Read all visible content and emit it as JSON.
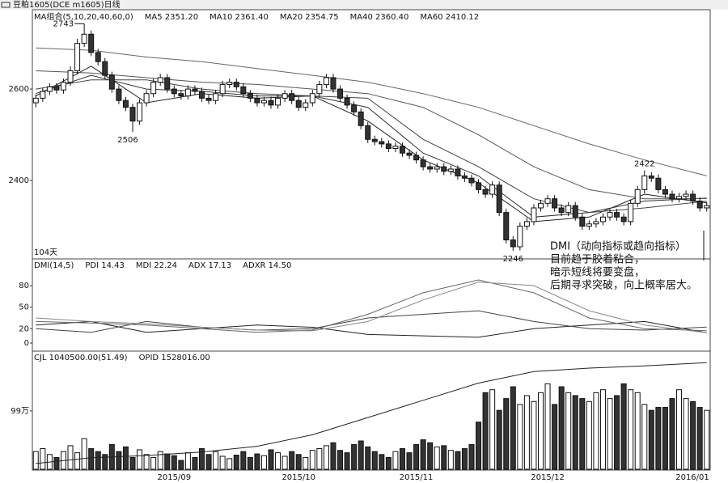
{
  "window_title": "豆粕1605(DCE m1605)日线",
  "chart_data": [
    {
      "type": "candlestick",
      "title": "MA组合(5,10,20,40,60,0)",
      "open": [
        2570,
        2580,
        2595,
        2605,
        2598,
        2615,
        2640,
        2700,
        2720,
        2680,
        2660,
        2630,
        2600,
        2575,
        2560,
        2530,
        2570,
        2590,
        2615,
        2625,
        2600,
        2590,
        2585,
        2600,
        2595,
        2580,
        2575,
        2590,
        2610,
        2615,
        2605,
        2590,
        2580,
        2570,
        2575,
        2565,
        2580,
        2590,
        2575,
        2560,
        2570,
        2590,
        2610,
        2625,
        2600,
        2580,
        2565,
        2550,
        2520,
        2490,
        2485,
        2480,
        2470,
        2475,
        2460,
        2455,
        2445,
        2430,
        2425,
        2430,
        2420,
        2425,
        2410,
        2405,
        2395,
        2380,
        2370,
        2390,
        2330,
        2270,
        2255,
        2300,
        2310,
        2340,
        2350,
        2360,
        2340,
        2330,
        2345,
        2320,
        2300,
        2305,
        2310,
        2320,
        2330,
        2320,
        2310,
        2350,
        2380,
        2410,
        2405,
        2380,
        2370,
        2360,
        2365,
        2370,
        2355,
        2340
      ],
      "high": [
        2588,
        2603,
        2613,
        2613,
        2623,
        2650,
        2710,
        2743,
        2728,
        2688,
        2668,
        2638,
        2608,
        2583,
        2568,
        2578,
        2598,
        2623,
        2633,
        2633,
        2608,
        2598,
        2608,
        2608,
        2603,
        2588,
        2598,
        2618,
        2623,
        2623,
        2613,
        2598,
        2588,
        2583,
        2583,
        2588,
        2598,
        2598,
        2583,
        2578,
        2598,
        2618,
        2633,
        2633,
        2608,
        2588,
        2573,
        2558,
        2528,
        2498,
        2493,
        2488,
        2483,
        2483,
        2468,
        2463,
        2453,
        2438,
        2438,
        2438,
        2433,
        2433,
        2418,
        2413,
        2403,
        2388,
        2398,
        2398,
        2338,
        2278,
        2308,
        2318,
        2348,
        2358,
        2368,
        2368,
        2348,
        2353,
        2353,
        2328,
        2313,
        2318,
        2328,
        2338,
        2338,
        2328,
        2358,
        2388,
        2422,
        2418,
        2413,
        2388,
        2378,
        2373,
        2378,
        2378,
        2363,
        2353
      ],
      "low": [
        2560,
        2572,
        2587,
        2590,
        2590,
        2607,
        2632,
        2692,
        2672,
        2652,
        2622,
        2592,
        2567,
        2552,
        2506,
        2522,
        2562,
        2582,
        2607,
        2592,
        2582,
        2577,
        2577,
        2587,
        2572,
        2567,
        2567,
        2582,
        2602,
        2597,
        2582,
        2572,
        2562,
        2562,
        2557,
        2557,
        2572,
        2567,
        2552,
        2552,
        2562,
        2582,
        2602,
        2592,
        2572,
        2557,
        2542,
        2512,
        2482,
        2477,
        2472,
        2462,
        2462,
        2452,
        2447,
        2437,
        2422,
        2417,
        2417,
        2412,
        2412,
        2402,
        2397,
        2387,
        2372,
        2362,
        2362,
        2322,
        2262,
        2246,
        2247,
        2292,
        2302,
        2332,
        2342,
        2332,
        2322,
        2322,
        2312,
        2292,
        2292,
        2297,
        2302,
        2312,
        2312,
        2302,
        2302,
        2342,
        2372,
        2397,
        2372,
        2362,
        2352,
        2352,
        2357,
        2347,
        2332,
        2332
      ],
      "close": [
        2580,
        2595,
        2605,
        2598,
        2615,
        2640,
        2700,
        2720,
        2680,
        2660,
        2630,
        2600,
        2575,
        2560,
        2530,
        2570,
        2590,
        2615,
        2625,
        2600,
        2590,
        2585,
        2600,
        2595,
        2580,
        2575,
        2590,
        2610,
        2615,
        2605,
        2590,
        2580,
        2570,
        2575,
        2565,
        2580,
        2590,
        2575,
        2560,
        2570,
        2590,
        2610,
        2625,
        2600,
        2580,
        2565,
        2550,
        2520,
        2490,
        2485,
        2480,
        2470,
        2475,
        2460,
        2455,
        2445,
        2430,
        2425,
        2430,
        2420,
        2425,
        2410,
        2405,
        2395,
        2380,
        2370,
        2390,
        2330,
        2270,
        2255,
        2300,
        2310,
        2340,
        2350,
        2360,
        2340,
        2330,
        2345,
        2320,
        2300,
        2305,
        2310,
        2320,
        2330,
        2320,
        2310,
        2350,
        2380,
        2410,
        2405,
        2380,
        2370,
        2360,
        2365,
        2370,
        2355,
        2340,
        2345
      ],
      "up_color": "#ffffff",
      "down_color": "#333333",
      "ylim": [
        2232,
        2763
      ],
      "yticks": [
        2400,
        2600
      ],
      "count_label": "104天",
      "annotations": [
        "DMI（动向指标或趋向指标）",
        "目前趋于胶着粘合，",
        "暗示短线将要变盘，",
        "后期寻求突破，向上概率居大。"
      ],
      "series": [
        {
          "name": "MA5 2351.20",
          "color": "#222222",
          "x": [
            0,
            8,
            16,
            24,
            32,
            40,
            48,
            56,
            64,
            72,
            80,
            88,
            97
          ],
          "values": [
            2585,
            2650,
            2570,
            2590,
            2580,
            2585,
            2530,
            2445,
            2395,
            2310,
            2320,
            2370,
            2351.2
          ]
        },
        {
          "name": "MA10 2361.40",
          "color": "#333333",
          "x": [
            0,
            8,
            16,
            24,
            32,
            40,
            48,
            56,
            64,
            72,
            80,
            88,
            97
          ],
          "values": [
            2590,
            2630,
            2600,
            2595,
            2585,
            2585,
            2560,
            2460,
            2410,
            2320,
            2330,
            2355,
            2361.4
          ]
        },
        {
          "name": "MA20 2354.75",
          "color": "#444444",
          "x": [
            0,
            8,
            16,
            24,
            32,
            40,
            48,
            56,
            64,
            72,
            80,
            88,
            97
          ],
          "values": [
            2600,
            2620,
            2620,
            2600,
            2590,
            2585,
            2580,
            2490,
            2430,
            2360,
            2330,
            2340,
            2354.75
          ]
        },
        {
          "name": "MA40 2360.40",
          "color": "#555555",
          "x": [
            0,
            8,
            16,
            24,
            32,
            40,
            48,
            56,
            64,
            72,
            80,
            88,
            97
          ],
          "values": [
            2640,
            2635,
            2625,
            2615,
            2610,
            2600,
            2590,
            2560,
            2500,
            2430,
            2380,
            2360,
            2360.4
          ]
        },
        {
          "name": "MA60 2410.12",
          "color": "#666666",
          "x": [
            0,
            8,
            16,
            24,
            32,
            40,
            48,
            56,
            64,
            72,
            80,
            88,
            97
          ],
          "values": [
            2690,
            2685,
            2670,
            2660,
            2645,
            2630,
            2615,
            2590,
            2560,
            2520,
            2480,
            2445,
            2410.12
          ]
        }
      ]
    },
    {
      "type": "line",
      "title": "DMI(14,5)",
      "x": [
        0,
        8,
        16,
        24,
        32,
        40,
        48,
        56,
        64,
        72,
        80,
        88,
        97
      ],
      "ylim": [
        -9,
        115
      ],
      "yticks": [
        80,
        50,
        20,
        0
      ],
      "series": [
        {
          "name": "PDI 14.43",
          "color": "#222222",
          "values": [
            25,
            30,
            15,
            20,
            25,
            22,
            12,
            10,
            8,
            20,
            25,
            30,
            14.43
          ]
        },
        {
          "name": "MDI 22.24",
          "color": "#444444",
          "values": [
            20,
            15,
            30,
            22,
            18,
            20,
            35,
            40,
            45,
            30,
            20,
            18,
            22.24
          ]
        },
        {
          "name": "ADX 17.13",
          "color": "#666666",
          "values": [
            30,
            28,
            25,
            20,
            15,
            18,
            40,
            70,
            88,
            70,
            35,
            20,
            17.13
          ]
        },
        {
          "name": "ADXR 14.50",
          "color": "#888888",
          "values": [
            35,
            30,
            27,
            22,
            18,
            17,
            30,
            60,
            85,
            80,
            45,
            25,
            14.5
          ]
        }
      ]
    },
    {
      "type": "bar",
      "categories": [
        null,
        null,
        null,
        null,
        null,
        null,
        null,
        null,
        null,
        null,
        null,
        null,
        null,
        null,
        null,
        null,
        null,
        null,
        null,
        null,
        "2015/09",
        null,
        null,
        null,
        null,
        null,
        null,
        null,
        null,
        null,
        null,
        null,
        null,
        null,
        null,
        null,
        null,
        null,
        "2015/10",
        null,
        null,
        null,
        null,
        null,
        null,
        null,
        null,
        null,
        null,
        null,
        null,
        null,
        null,
        null,
        null,
        "2015/11",
        null,
        null,
        null,
        null,
        null,
        null,
        null,
        null,
        null,
        null,
        null,
        null,
        null,
        null,
        null,
        null,
        null,
        null,
        "2015/12",
        null,
        null,
        null,
        null,
        null,
        null,
        null,
        null,
        null,
        null,
        null,
        null,
        null,
        null,
        null,
        null,
        null,
        null,
        null,
        null,
        null,
        null,
        "2016/01"
      ],
      "ylim": [
        0,
        1950000
      ],
      "yticks": [
        {
          "value": 990000,
          "label": "99万"
        }
      ],
      "y2lim": [
        600000,
        1600000
      ],
      "series": [
        {
          "name": "CJL 1040500.00(51.49)",
          "color": "#333333",
          "values": [
            300000,
            350000,
            250000,
            200000,
            300000,
            400000,
            280000,
            520000,
            350000,
            300000,
            250000,
            420000,
            300000,
            380000,
            200000,
            330000,
            250000,
            200000,
            300000,
            260000,
            230000,
            150000,
            280000,
            200000,
            350000,
            250000,
            300000,
            220000,
            180000,
            240000,
            300000,
            200000,
            260000,
            230000,
            330000,
            280000,
            220000,
            300000,
            250000,
            200000,
            320000,
            350000,
            400000,
            450000,
            320000,
            280000,
            420000,
            480000,
            380000,
            300000,
            250000,
            200000,
            300000,
            350000,
            280000,
            420000,
            500000,
            450000,
            380000,
            400000,
            320000,
            300000,
            350000,
            420000,
            800000,
            1300000,
            1350000,
            1000000,
            1200000,
            1400000,
            1100000,
            1250000,
            1150000,
            1300000,
            1450000,
            1100000,
            1400000,
            1300000,
            1250000,
            1200000,
            1150000,
            1300000,
            1350000,
            1200000,
            1250000,
            1450000,
            1350000,
            1300000,
            1100000,
            1000000,
            1050000,
            1050000,
            1200000,
            1350000,
            1200000,
            1150000,
            1050000,
            1000000
          ]
        },
        {
          "name": "OPID 1528016.00",
          "color": "#222222",
          "axis": "y2",
          "x": [
            0,
            8,
            16,
            24,
            32,
            40,
            48,
            56,
            64,
            72,
            80,
            88,
            97
          ],
          "values": [
            650000,
            700000,
            720000,
            750000,
            800000,
            900000,
            1050000,
            1200000,
            1350000,
            1450000,
            1480000,
            1500000,
            1528016
          ]
        }
      ]
    }
  ]
}
